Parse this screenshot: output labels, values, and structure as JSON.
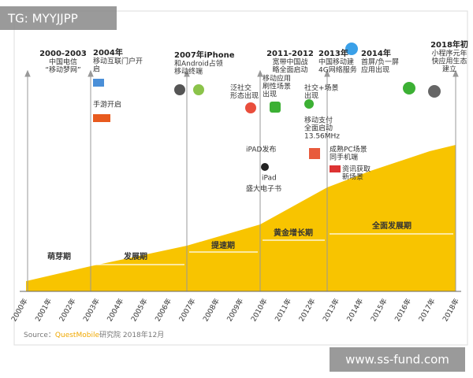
{
  "watermark_top": "TG: MYYJJPP",
  "watermark_bottom": "www.ss-fund.com",
  "source": {
    "prefix": "Source：",
    "brand": "QuestMobile",
    "suffix": "研究院 2018年12月"
  },
  "years": [
    "2000年",
    "2001年",
    "2002年",
    "2003年",
    "2004年",
    "2005年",
    "2006年",
    "2007年",
    "2008年",
    "2009年",
    "2010年",
    "2011年",
    "2012年",
    "2013年",
    "2014年",
    "2015年",
    "2016年",
    "2017年",
    "2018年"
  ],
  "phases": [
    "萌芽期",
    "发展期",
    "提速期",
    "黄金增长期",
    "全面发展期"
  ],
  "milestones": [
    {
      "title": "2000-2003",
      "lines": [
        "中国电信",
        "“移动梦网”"
      ]
    },
    {
      "title": "2004年",
      "lines": [
        "移动互联门户开",
        "启"
      ]
    },
    {
      "title": "2007年iPhone",
      "lines": [
        "和Android占领",
        "移动终端"
      ]
    },
    {
      "title": "2011-2012",
      "lines": [
        "宽带中国战",
        "略全面启动"
      ]
    },
    {
      "title": "2013年",
      "lines": [
        "中国移动建",
        "4G网络服务"
      ]
    },
    {
      "title": "2014年",
      "lines": [
        "首屏/负一屏",
        "应用出现"
      ]
    },
    {
      "title": "2018年初",
      "lines": [
        "小程序元年",
        "快应用生态",
        "建立"
      ]
    }
  ],
  "events": [
    {
      "lines": [
        "手游开启"
      ]
    },
    {
      "lines": [
        "泛社交",
        "形态出现"
      ]
    },
    {
      "lines": [
        "移动应用",
        "刷性场景",
        "出现"
      ]
    },
    {
      "lines": [
        "社交+场景",
        "出现"
      ]
    },
    {
      "lines": [
        "移动支付",
        "全面启动",
        "13.56MHz"
      ]
    },
    {
      "lines": [
        "成熟PC场景",
        "同手机端"
      ]
    },
    {
      "lines": [
        "资讯获取",
        "新场景"
      ]
    },
    {
      "lines": [
        "iPAD发布"
      ]
    },
    {
      "lines": [
        "iPad"
      ]
    },
    {
      "lines": [
        "盛大电子书"
      ]
    }
  ]
}
